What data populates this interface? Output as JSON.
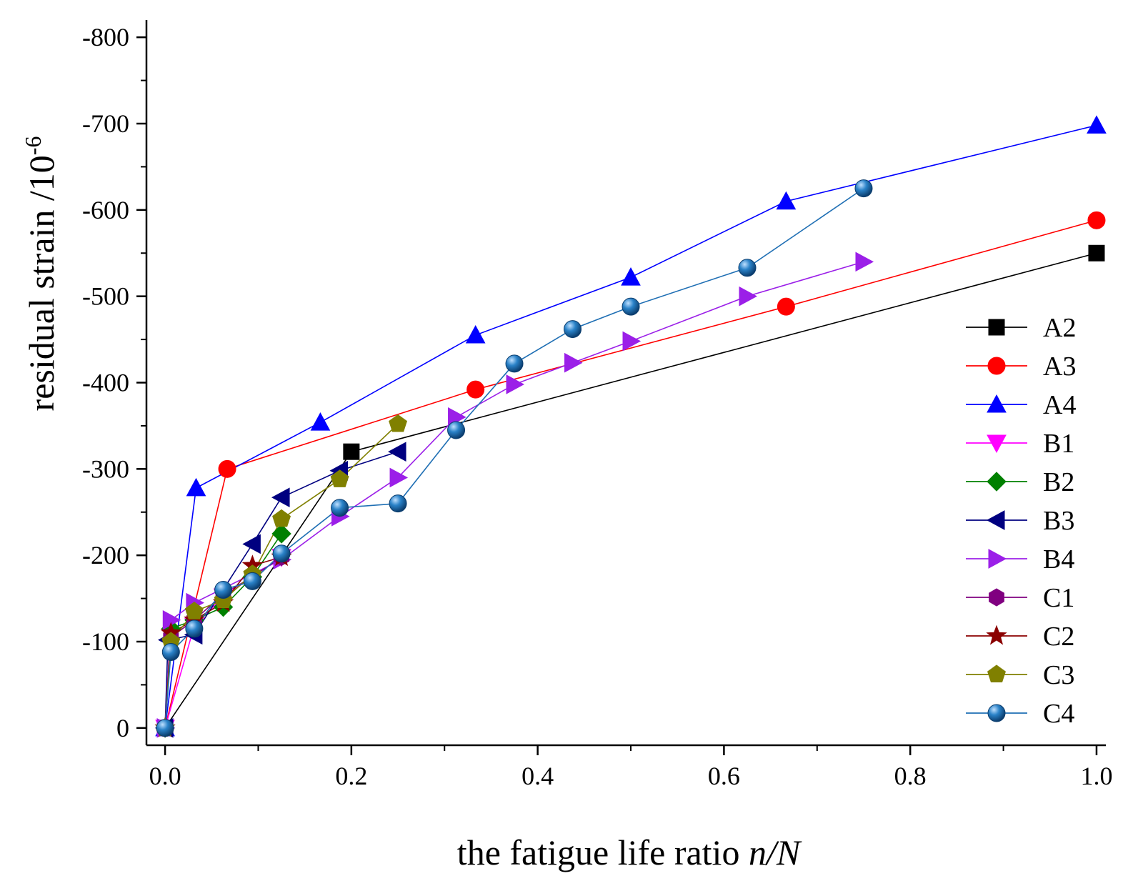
{
  "chart_data": {
    "type": "line",
    "xlabel": "the fatigue life ratio",
    "xlabel_italic": "n/N",
    "ylabel": "residual strain /10",
    "ylabel_exponent": "-6",
    "xlim": [
      -0.02,
      1.01
    ],
    "ylim": [
      20,
      -820
    ],
    "x_ticks": [
      0.0,
      0.2,
      0.4,
      0.6,
      0.8,
      1.0
    ],
    "x_tick_labels": [
      "0.0",
      "0.2",
      "0.4",
      "0.6",
      "0.8",
      "1.0"
    ],
    "y_ticks": [
      0,
      -100,
      -200,
      -300,
      -400,
      -500,
      -600,
      -700,
      -800
    ],
    "y_tick_labels": [
      "0",
      "-100",
      "-200",
      "-300",
      "-400",
      "-500",
      "-600",
      "-700",
      "-800"
    ],
    "legend_position": "right",
    "series": [
      {
        "name": "A2",
        "color": "#000000",
        "marker": "square",
        "x": [
          0,
          0.2,
          1.0
        ],
        "y": [
          0,
          -320,
          -550
        ]
      },
      {
        "name": "A3",
        "color": "#ff0000",
        "marker": "circle",
        "x": [
          0,
          0.0667,
          0.3333,
          0.6667,
          1.0
        ],
        "y": [
          0,
          -300,
          -392,
          -488,
          -588
        ]
      },
      {
        "name": "A4",
        "color": "#0000ff",
        "marker": "triangle-up",
        "x": [
          0,
          0.0333,
          0.1667,
          0.3333,
          0.5,
          0.6667,
          1.0
        ],
        "y": [
          0,
          -278,
          -354,
          -455,
          -522,
          -610,
          -698
        ]
      },
      {
        "name": "B1",
        "color": "#ff00ff",
        "marker": "triangle-down",
        "x": [
          0,
          0.0313,
          0.0625,
          0.125
        ],
        "y": [
          0,
          -118,
          -152,
          -198
        ]
      },
      {
        "name": "B2",
        "color": "#008000",
        "marker": "diamond",
        "x": [
          0,
          0.0063,
          0.0313,
          0.0625,
          0.0938,
          0.125
        ],
        "y": [
          0,
          -115,
          -125,
          -140,
          -175,
          -225
        ]
      },
      {
        "name": "B3",
        "color": "#000080",
        "marker": "triangle-left",
        "x": [
          0,
          0.0031,
          0.0313,
          0.0938,
          0.125,
          0.1875,
          0.25
        ],
        "y": [
          0,
          -102,
          -108,
          -213,
          -267,
          -298,
          -320
        ]
      },
      {
        "name": "B4",
        "color": "#9b1fe8",
        "marker": "triangle-right",
        "x": [
          0,
          0.0063,
          0.0313,
          0.125,
          0.1875,
          0.25,
          0.3125,
          0.375,
          0.4375,
          0.5,
          0.625,
          0.75
        ],
        "y": [
          0,
          -125,
          -145,
          -195,
          -245,
          -290,
          -360,
          -398,
          -423,
          -448,
          -500,
          -540
        ]
      },
      {
        "name": "C1",
        "color": "#800080",
        "marker": "hexagon",
        "x": [
          0,
          0.0063,
          0.0313,
          0.0625,
          0.0938,
          0.125
        ],
        "y": [
          0,
          -105,
          -125,
          -155,
          -175,
          -198
        ]
      },
      {
        "name": "C2",
        "color": "#8b0000",
        "marker": "star",
        "x": [
          0,
          0.0063,
          0.0313,
          0.0625,
          0.0938,
          0.125
        ],
        "y": [
          0,
          -110,
          -125,
          -145,
          -188,
          -198
        ]
      },
      {
        "name": "C3",
        "color": "#808000",
        "marker": "pentagon",
        "x": [
          0,
          0.0063,
          0.0313,
          0.0625,
          0.0938,
          0.125,
          0.1875,
          0.25
        ],
        "y": [
          0,
          -100,
          -135,
          -148,
          -178,
          -242,
          -288,
          -352
        ]
      },
      {
        "name": "C4",
        "color": "#1f6fb4",
        "marker": "ball",
        "x": [
          0,
          0.0063,
          0.0313,
          0.0625,
          0.0938,
          0.125,
          0.1875,
          0.25,
          0.3125,
          0.375,
          0.4375,
          0.5,
          0.625,
          0.75
        ],
        "y": [
          0,
          -88,
          -115,
          -160,
          -170,
          -202,
          -255,
          -260,
          -345,
          -422,
          -462,
          -488,
          -533,
          -625
        ]
      }
    ]
  }
}
